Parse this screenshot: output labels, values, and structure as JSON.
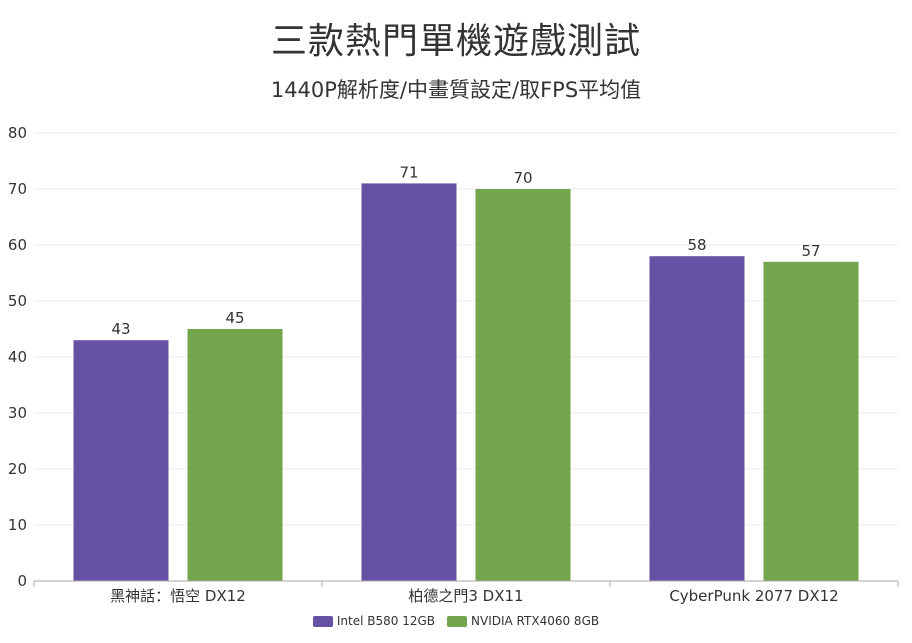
{
  "chart_data": {
    "type": "bar",
    "title": "三款熱門單機遊戲測試",
    "subtitle": "1440P解析度/中畫質設定/取FPS平均值",
    "categories": [
      "黑神話：悟空 DX12",
      "柏德之門3 DX11",
      "CyberPunk 2077 DX12"
    ],
    "series": [
      {
        "name": "Intel B580 12GB",
        "color": "#6652a4",
        "values": [
          43,
          71,
          58
        ]
      },
      {
        "name": "NVIDIA RTX4060 8GB",
        "color": "#72a54c",
        "values": [
          45,
          70,
          57
        ]
      }
    ],
    "ylim": [
      0,
      80
    ],
    "yticks": [
      0,
      10,
      20,
      30,
      40,
      50,
      60,
      70,
      80
    ],
    "grid": true,
    "legend_position": "bottom-center",
    "data_labels": true
  }
}
